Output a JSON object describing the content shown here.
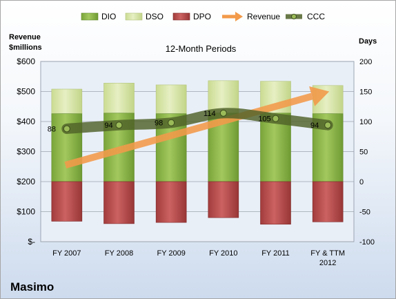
{
  "chart_data": {
    "type": "bar",
    "title": "12-Month Periods",
    "company": "Masimo",
    "ylabel_left": [
      "Revenue",
      "$millions"
    ],
    "ylabel_right": "Days",
    "categories": [
      [
        "FY 2007"
      ],
      [
        "FY 2008"
      ],
      [
        "FY 2009"
      ],
      [
        "FY 2010"
      ],
      [
        "FY 2011"
      ],
      [
        "FY & TTM",
        "2012"
      ]
    ],
    "left_axis": {
      "min": 0,
      "max": 600,
      "ticks": [
        0,
        100,
        200,
        300,
        400,
        500,
        600
      ],
      "tick_labels": [
        "$-",
        "$100",
        "$200",
        "$300",
        "$400",
        "$500",
        "$600"
      ]
    },
    "right_axis": {
      "min": -100,
      "max": 200,
      "ticks": [
        -100,
        -50,
        0,
        50,
        100,
        150,
        200
      ],
      "tick_labels": [
        "-100",
        "-50",
        "0",
        "50",
        "100",
        "150",
        "200"
      ]
    },
    "gridlines": true,
    "legend_position": "top",
    "series": [
      {
        "name": "DIO",
        "kind": "stacked-bar",
        "axis": "right",
        "values": [
          113,
          114,
          113,
          114,
          114,
          113
        ],
        "color": "#8db84a"
      },
      {
        "name": "DSO",
        "kind": "stacked-bar",
        "axis": "right",
        "values": [
          41,
          50,
          48,
          54,
          53,
          47
        ],
        "color": "#d7e4a6"
      },
      {
        "name": "DPO",
        "kind": "stacked-bar",
        "axis": "right",
        "values": [
          -66,
          -70,
          -68,
          -60,
          -71,
          -67
        ],
        "color": "#b44a4a"
      },
      {
        "name": "Revenue",
        "kind": "arrow",
        "axis": "left",
        "values": [
          255,
          300,
          345,
          400,
          450,
          500
        ],
        "color": "#f29a4a"
      },
      {
        "name": "CCC",
        "kind": "line",
        "axis": "right",
        "values": [
          88,
          94,
          98,
          114,
          105,
          94
        ],
        "data_labels": [
          "88",
          "94",
          "98",
          "114",
          "105",
          "94"
        ],
        "color": "#4f6228"
      }
    ]
  }
}
